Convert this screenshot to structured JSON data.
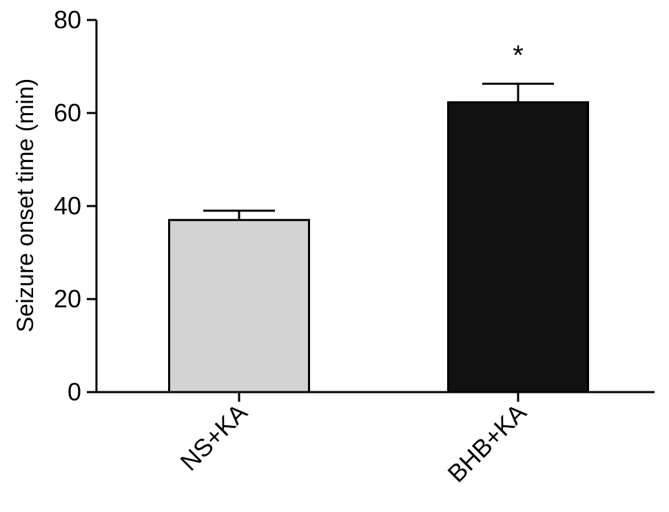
{
  "chart_data": {
    "type": "bar",
    "title": "",
    "xlabel": "",
    "ylabel": "Seizure onset time (min)",
    "ylim": [
      0,
      80
    ],
    "yticks": [
      0,
      20,
      40,
      60,
      80
    ],
    "grid": false,
    "categories": [
      "NS+KA",
      "BHB+KA"
    ],
    "values": [
      37,
      62.3
    ],
    "error_upper": [
      2.0,
      4.0
    ],
    "bar_colors": [
      "#d3d3d3",
      "#111111"
    ],
    "annotations": [
      {
        "category": "BHB+KA",
        "text": "*"
      }
    ]
  }
}
